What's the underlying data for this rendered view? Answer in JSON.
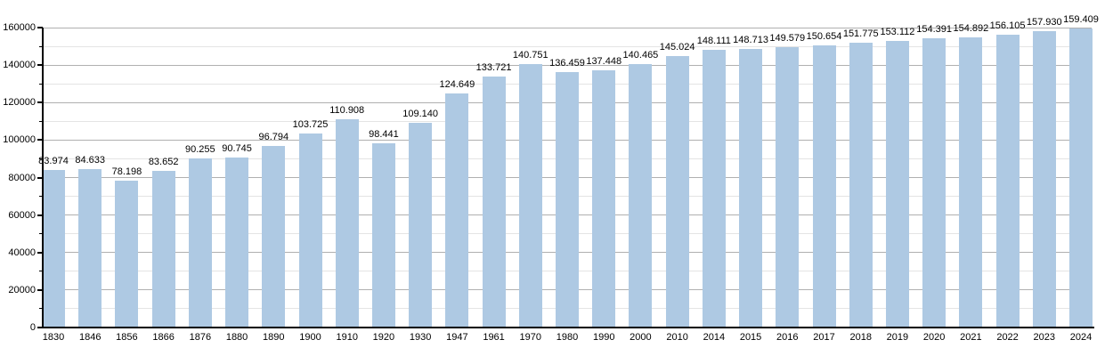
{
  "chart_data": {
    "type": "bar",
    "title": "",
    "xlabel": "",
    "ylabel": "",
    "categories": [
      "1830",
      "1846",
      "1856",
      "1866",
      "1876",
      "1880",
      "1890",
      "1900",
      "1910",
      "1920",
      "1930",
      "1947",
      "1961",
      "1970",
      "1980",
      "1990",
      "2000",
      "2010",
      "2014",
      "2015",
      "2016",
      "2017",
      "2018",
      "2019",
      "2020",
      "2021",
      "2022",
      "2023",
      "2024"
    ],
    "values": [
      83974,
      84633,
      78198,
      83652,
      90255,
      90745,
      96794,
      103725,
      110908,
      98441,
      109140,
      124649,
      133721,
      140751,
      136459,
      137448,
      140465,
      145024,
      148111,
      148713,
      149579,
      150654,
      151775,
      153112,
      154391,
      154892,
      156105,
      157930,
      159409
    ],
    "value_labels": [
      "83.974",
      "84.633",
      "78.198",
      "83.652",
      "90.255",
      "90.745",
      "96.794",
      "103.725",
      "110.908",
      "98.441",
      "109.140",
      "124.649",
      "133.721",
      "140.751",
      "136.459",
      "137.448",
      "140.465",
      "145.024",
      "148.111",
      "148.713",
      "149.579",
      "150.654",
      "151.775",
      "153.112",
      "154.391",
      "154.892",
      "156.105",
      "157.930",
      "159.409"
    ],
    "ylim": [
      0,
      160000
    ],
    "y_major_step": 20000,
    "y_minor_step": 10000,
    "y_tick_labels": [
      "0",
      "20000",
      "40000",
      "60000",
      "80000",
      "100000",
      "120000",
      "140000",
      "160000"
    ],
    "grid": "on",
    "legend": "none",
    "colors": {
      "bar": "#aec9e3",
      "grid_major": "#b0b0b0",
      "grid_minor": "#e4e4e4",
      "axis": "#000000",
      "label_text": "#000000"
    }
  }
}
